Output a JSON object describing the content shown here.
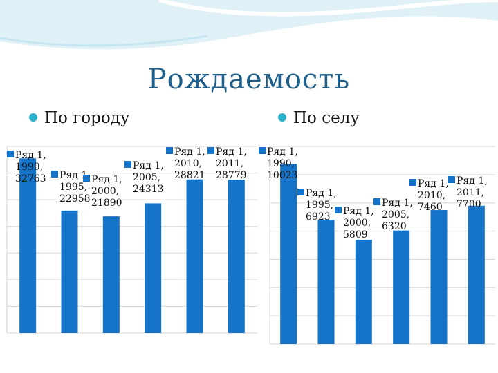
{
  "title": "Рождаемость",
  "bullets": [
    "По городу",
    "По селу"
  ],
  "colors": {
    "bar": "#1573c9",
    "accent": "#2ab0c8",
    "title": "#1f5f8b",
    "grid": "#d6d6d6"
  },
  "chart_data": [
    {
      "type": "bar",
      "title": "По городу",
      "series": [
        {
          "name": "Ряд 1",
          "values": [
            32763,
            22958,
            21890,
            24313,
            28821,
            28779
          ]
        }
      ],
      "categories": [
        "1990",
        "1995",
        "2000",
        "2005",
        "2010",
        "2011"
      ],
      "data_labels": [
        [
          "Ряд 1,",
          "1990,",
          "32763"
        ],
        [
          "Ряд 1,",
          "1995,",
          "22958"
        ],
        [
          "Ряд 1,",
          "2000,",
          "21890"
        ],
        [
          "Ряд 1,",
          "2005,",
          "24313"
        ],
        [
          "Ряд 1,",
          "2010,",
          "28821"
        ],
        [
          "Ряд 1,",
          "2011,",
          "28779"
        ]
      ],
      "ylim": [
        0,
        35000
      ],
      "grid": true,
      "legend": "none"
    },
    {
      "type": "bar",
      "title": "По селу",
      "series": [
        {
          "name": "Ряд 1",
          "values": [
            10023,
            6923,
            5809,
            6320,
            7460,
            7700
          ]
        }
      ],
      "categories": [
        "1990",
        "1995",
        "2000",
        "2005",
        "2010",
        "2011"
      ],
      "data_labels": [
        [
          "Ряд 1,",
          "1990,",
          "10023"
        ],
        [
          "Ряд 1,",
          "1995,",
          "6923"
        ],
        [
          "Ряд 1,",
          "2000,",
          "5809"
        ],
        [
          "Ряд 1,",
          "2005,",
          "6320"
        ],
        [
          "Ряд 1,",
          "2010,",
          "7460"
        ],
        [
          "Ряд 1,",
          "2011,",
          "7700"
        ]
      ],
      "ylim": [
        0,
        11000
      ],
      "grid": true,
      "legend": "none"
    }
  ]
}
